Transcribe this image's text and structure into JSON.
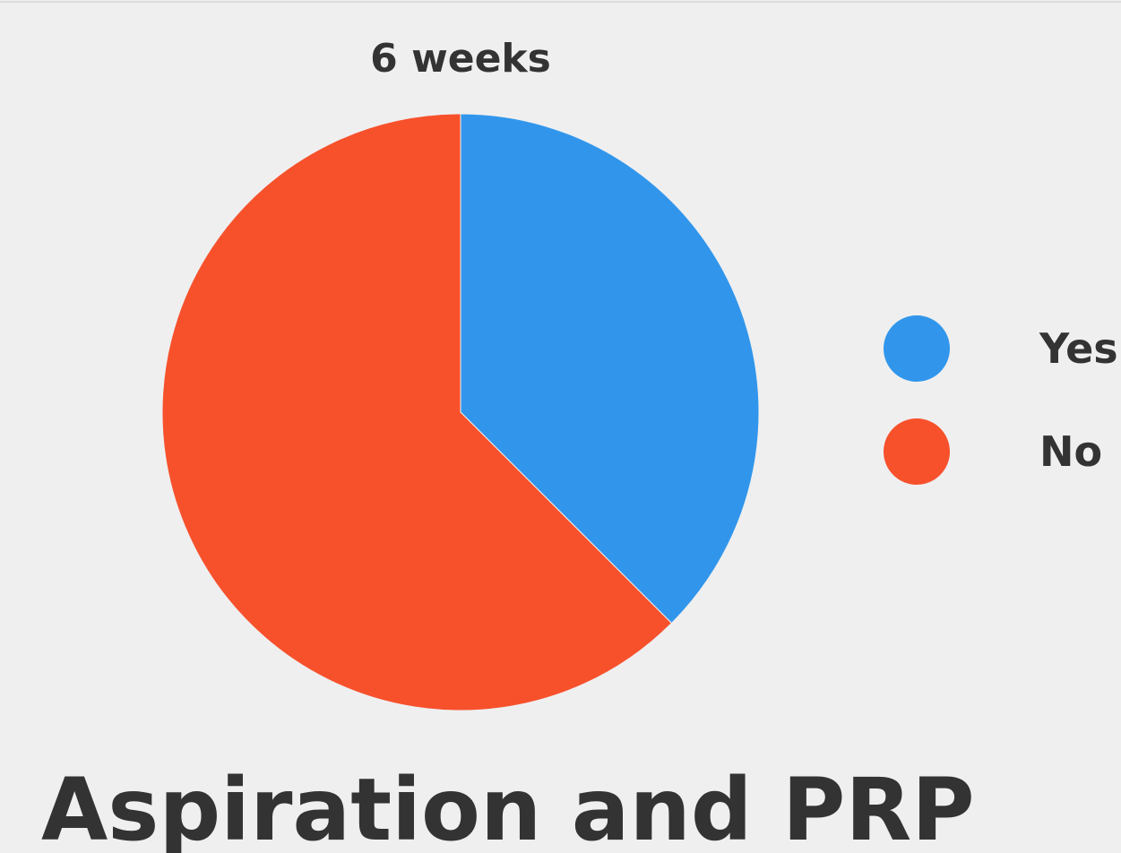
{
  "chart_data": {
    "type": "pie",
    "title": "6 weeks",
    "categories": [
      "Yes",
      "No"
    ],
    "values": [
      37.5,
      62.5
    ],
    "colors": [
      "#3196eb",
      "#f7512c"
    ],
    "legend": "right"
  },
  "heading": "Aspiration and PRP"
}
